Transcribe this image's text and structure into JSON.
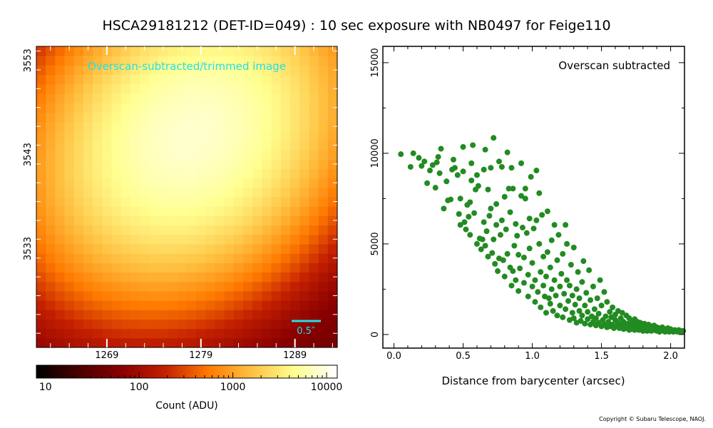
{
  "title": "HSCA29181212 (DET-ID=049) :  10 sec exposure with NB0497 for Feige110",
  "copyright": "Copyright © Subaru Telescope, NAOJ.",
  "image_panel": {
    "label": "Overscan-subtracted/trimmed image",
    "scale_bar_label": "0.5″",
    "x_ticks": [
      1269,
      1279,
      1289
    ],
    "y_ticks": [
      3533,
      3543,
      3553
    ],
    "x_range": [
      1262,
      1294
    ],
    "y_range": [
      3523,
      3555
    ],
    "star": {
      "x_center": 1278.5,
      "y_center": 3545.5,
      "peak_count": 8000,
      "background_count": 45
    }
  },
  "colorbar": {
    "label": "Count (ADU)",
    "ticks": [
      "10",
      "100",
      "1000",
      "10000"
    ],
    "scale": "log",
    "range": [
      8,
      13000
    ],
    "colors": [
      "#000000",
      "#4a0000",
      "#8b0000",
      "#c42000",
      "#ff7a00",
      "#ffc040",
      "#ffff90",
      "#ffffff"
    ]
  },
  "chart_data": {
    "type": "scatter",
    "annotation": "Overscan subtracted",
    "xlabel": "Distance from barycenter (arcsec)",
    "ylabel": "",
    "x_ticks": [
      "0.0",
      "0.5",
      "1.0",
      "1.5",
      "2.0"
    ],
    "y_ticks": [
      "0",
      "5000",
      "10000",
      "15000"
    ],
    "xlim": [
      -0.08,
      2.1
    ],
    "ylim": [
      -750,
      15900
    ],
    "grid": false,
    "marker_color": "#228b22",
    "points": [
      [
        0.05,
        9950
      ],
      [
        0.12,
        9250
      ],
      [
        0.14,
        10000
      ],
      [
        0.18,
        9750
      ],
      [
        0.2,
        9300
      ],
      [
        0.22,
        9550
      ],
      [
        0.24,
        8350
      ],
      [
        0.26,
        9050
      ],
      [
        0.28,
        9350
      ],
      [
        0.3,
        8100
      ],
      [
        0.31,
        9500
      ],
      [
        0.32,
        9800
      ],
      [
        0.33,
        8900
      ],
      [
        0.34,
        10250
      ],
      [
        0.36,
        6950
      ],
      [
        0.38,
        8450
      ],
      [
        0.39,
        7400
      ],
      [
        0.41,
        7450
      ],
      [
        0.42,
        9100
      ],
      [
        0.43,
        9650
      ],
      [
        0.44,
        9200
      ],
      [
        0.46,
        8800
      ],
      [
        0.47,
        6650
      ],
      [
        0.48,
        6050
      ],
      [
        0.48,
        7500
      ],
      [
        0.5,
        10350
      ],
      [
        0.5,
        9000
      ],
      [
        0.51,
        6200
      ],
      [
        0.52,
        5800
      ],
      [
        0.53,
        7150
      ],
      [
        0.54,
        6500
      ],
      [
        0.55,
        5500
      ],
      [
        0.55,
        7300
      ],
      [
        0.56,
        9450
      ],
      [
        0.56,
        8500
      ],
      [
        0.57,
        10450
      ],
      [
        0.58,
        6700
      ],
      [
        0.59,
        8000
      ],
      [
        0.6,
        5000
      ],
      [
        0.6,
        8800
      ],
      [
        0.61,
        8200
      ],
      [
        0.62,
        5300
      ],
      [
        0.63,
        4700
      ],
      [
        0.64,
        5250
      ],
      [
        0.65,
        6200
      ],
      [
        0.65,
        9100
      ],
      [
        0.66,
        4900
      ],
      [
        0.66,
        10200
      ],
      [
        0.67,
        5700
      ],
      [
        0.68,
        4300
      ],
      [
        0.68,
        8000
      ],
      [
        0.69,
        6550
      ],
      [
        0.7,
        6950
      ],
      [
        0.7,
        9200
      ],
      [
        0.71,
        4500
      ],
      [
        0.72,
        10850
      ],
      [
        0.72,
        5250
      ],
      [
        0.73,
        3900
      ],
      [
        0.74,
        7200
      ],
      [
        0.74,
        6050
      ],
      [
        0.75,
        3500
      ],
      [
        0.76,
        4200
      ],
      [
        0.76,
        9550
      ],
      [
        0.77,
        5500
      ],
      [
        0.78,
        6300
      ],
      [
        0.78,
        9250
      ],
      [
        0.79,
        4100
      ],
      [
        0.8,
        3200
      ],
      [
        0.8,
        7600
      ],
      [
        0.81,
        5800
      ],
      [
        0.82,
        10050
      ],
      [
        0.82,
        4450
      ],
      [
        0.83,
        8050
      ],
      [
        0.84,
        3700
      ],
      [
        0.84,
        6750
      ],
      [
        0.85,
        2700
      ],
      [
        0.85,
        9200
      ],
      [
        0.86,
        8050
      ],
      [
        0.86,
        3500
      ],
      [
        0.87,
        4900
      ],
      [
        0.88,
        6100
      ],
      [
        0.88,
        3000
      ],
      [
        0.89,
        5450
      ],
      [
        0.9,
        4400
      ],
      [
        0.9,
        2400
      ],
      [
        0.91,
        3650
      ],
      [
        0.92,
        9450
      ],
      [
        0.92,
        7650
      ],
      [
        0.93,
        5900
      ],
      [
        0.94,
        4250
      ],
      [
        0.94,
        2850
      ],
      [
        0.95,
        7500
      ],
      [
        0.95,
        8050
      ],
      [
        0.96,
        5600
      ],
      [
        0.97,
        3300
      ],
      [
        0.97,
        2100
      ],
      [
        0.98,
        4750
      ],
      [
        0.98,
        6400
      ],
      [
        0.99,
        8700
      ],
      [
        1.0,
        2650
      ],
      [
        1.0,
        3950
      ],
      [
        1.01,
        5850
      ],
      [
        1.02,
        1800
      ],
      [
        1.02,
        3000
      ],
      [
        1.03,
        6300
      ],
      [
        1.03,
        9050
      ],
      [
        1.04,
        2350
      ],
      [
        1.05,
        5000
      ],
      [
        1.05,
        7800
      ],
      [
        1.06,
        3450
      ],
      [
        1.06,
        1500
      ],
      [
        1.07,
        6600
      ],
      [
        1.08,
        2700
      ],
      [
        1.08,
        4300
      ],
      [
        1.09,
        2100
      ],
      [
        1.1,
        1200
      ],
      [
        1.1,
        3200
      ],
      [
        1.11,
        6800
      ],
      [
        1.11,
        4550
      ],
      [
        1.12,
        2000
      ],
      [
        1.13,
        1700
      ],
      [
        1.13,
        3700
      ],
      [
        1.14,
        2500
      ],
      [
        1.14,
        5200
      ],
      [
        1.15,
        1300
      ],
      [
        1.16,
        3000
      ],
      [
        1.16,
        6050
      ],
      [
        1.17,
        2150
      ],
      [
        1.18,
        4100
      ],
      [
        1.18,
        1050
      ],
      [
        1.19,
        5500
      ],
      [
        1.2,
        2650
      ],
      [
        1.2,
        1600
      ],
      [
        1.21,
        3350
      ],
      [
        1.22,
        950
      ],
      [
        1.22,
        4450
      ],
      [
        1.23,
        2250
      ],
      [
        1.24,
        6050
      ],
      [
        1.24,
        1400
      ],
      [
        1.25,
        3000
      ],
      [
        1.25,
        5000
      ],
      [
        1.26,
        1850
      ],
      [
        1.27,
        800
      ],
      [
        1.27,
        2700
      ],
      [
        1.28,
        3850
      ],
      [
        1.29,
        1200
      ],
      [
        1.29,
        2150
      ],
      [
        1.3,
        4800
      ],
      [
        1.3,
        900
      ],
      [
        1.31,
        1650
      ],
      [
        1.32,
        2500
      ],
      [
        1.32,
        650
      ],
      [
        1.33,
        3450
      ],
      [
        1.34,
        1300
      ],
      [
        1.34,
        2000
      ],
      [
        1.35,
        750
      ],
      [
        1.36,
        2900
      ],
      [
        1.36,
        1050
      ],
      [
        1.37,
        4050
      ],
      [
        1.38,
        600
      ],
      [
        1.38,
        1600
      ],
      [
        1.39,
        2300
      ],
      [
        1.4,
        850
      ],
      [
        1.4,
        1250
      ],
      [
        1.41,
        3550
      ],
      [
        1.42,
        550
      ],
      [
        1.42,
        1900
      ],
      [
        1.43,
        1000
      ],
      [
        1.44,
        700
      ],
      [
        1.44,
        2650
      ],
      [
        1.45,
        1400
      ],
      [
        1.46,
        500
      ],
      [
        1.46,
        900
      ],
      [
        1.47,
        2000
      ],
      [
        1.48,
        650
      ],
      [
        1.48,
        1150
      ],
      [
        1.49,
        3000
      ],
      [
        1.5,
        450
      ],
      [
        1.5,
        1600
      ],
      [
        1.51,
        800
      ],
      [
        1.52,
        2350
      ],
      [
        1.52,
        550
      ],
      [
        1.53,
        1000
      ],
      [
        1.54,
        400
      ],
      [
        1.54,
        1800
      ],
      [
        1.55,
        700
      ],
      [
        1.56,
        1250
      ],
      [
        1.56,
        450
      ],
      [
        1.57,
        950
      ],
      [
        1.58,
        550
      ],
      [
        1.58,
        1500
      ],
      [
        1.59,
        350
      ],
      [
        1.6,
        800
      ],
      [
        1.6,
        1100
      ],
      [
        1.61,
        450
      ],
      [
        1.62,
        650
      ],
      [
        1.62,
        1300
      ],
      [
        1.63,
        350
      ],
      [
        1.64,
        900
      ],
      [
        1.64,
        550
      ],
      [
        1.65,
        1200
      ],
      [
        1.66,
        300
      ],
      [
        1.66,
        700
      ],
      [
        1.67,
        450
      ],
      [
        1.68,
        1050
      ],
      [
        1.68,
        350
      ],
      [
        1.69,
        600
      ],
      [
        1.7,
        250
      ],
      [
        1.7,
        900
      ],
      [
        1.71,
        500
      ],
      [
        1.72,
        700
      ],
      [
        1.72,
        300
      ],
      [
        1.73,
        450
      ],
      [
        1.74,
        850
      ],
      [
        1.74,
        250
      ],
      [
        1.75,
        550
      ],
      [
        1.76,
        350
      ],
      [
        1.76,
        700
      ],
      [
        1.77,
        250
      ],
      [
        1.78,
        500
      ],
      [
        1.78,
        650
      ],
      [
        1.79,
        300
      ],
      [
        1.8,
        450
      ],
      [
        1.8,
        200
      ],
      [
        1.81,
        600
      ],
      [
        1.82,
        300
      ],
      [
        1.82,
        450
      ],
      [
        1.83,
        200
      ],
      [
        1.84,
        550
      ],
      [
        1.84,
        350
      ],
      [
        1.85,
        250
      ],
      [
        1.86,
        450
      ],
      [
        1.86,
        200
      ],
      [
        1.87,
        350
      ],
      [
        1.88,
        500
      ],
      [
        1.88,
        250
      ],
      [
        1.89,
        300
      ],
      [
        1.9,
        200
      ],
      [
        1.9,
        400
      ],
      [
        1.91,
        250
      ],
      [
        1.92,
        350
      ],
      [
        1.92,
        150
      ],
      [
        1.93,
        300
      ],
      [
        1.94,
        250
      ],
      [
        1.94,
        400
      ],
      [
        1.95,
        200
      ],
      [
        1.96,
        300
      ],
      [
        1.96,
        150
      ],
      [
        1.97,
        250
      ],
      [
        1.98,
        350
      ],
      [
        1.98,
        200
      ],
      [
        1.99,
        150
      ],
      [
        2.0,
        250
      ],
      [
        2.0,
        300
      ],
      [
        2.01,
        200
      ],
      [
        2.02,
        150
      ],
      [
        2.03,
        250
      ],
      [
        2.04,
        200
      ],
      [
        2.05,
        150
      ],
      [
        2.06,
        250
      ],
      [
        2.07,
        200
      ],
      [
        2.08,
        150
      ],
      [
        2.09,
        200
      ]
    ]
  }
}
